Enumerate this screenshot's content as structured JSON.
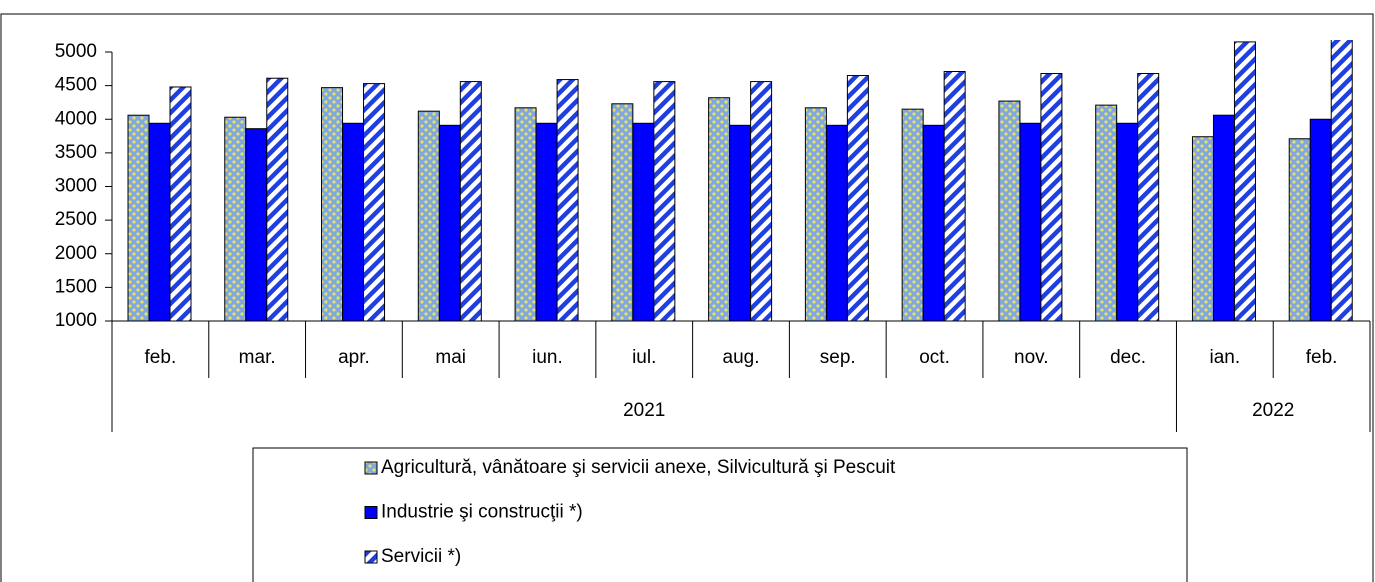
{
  "chart_data": {
    "type": "bar",
    "categories": [
      "feb.",
      "mar.",
      "apr.",
      "mai",
      "iun.",
      "iul.",
      "aug.",
      "sep.",
      "oct.",
      "nov.",
      "dec.",
      "ian.",
      "feb."
    ],
    "groups": [
      {
        "label": "2021",
        "count": 11
      },
      {
        "label": "2022",
        "count": 2
      }
    ],
    "series": [
      {
        "name": "Agricultură, vânătoare şi servicii anexe, Silvicultură şi Pescuit",
        "color": "#7fa7e0",
        "pattern": "dots",
        "values": [
          4060,
          4030,
          4470,
          4120,
          4170,
          4230,
          4320,
          4170,
          4150,
          4270,
          4210,
          3740,
          3710
        ]
      },
      {
        "name": "Industrie şi construcţii *)",
        "color": "#0000ff",
        "pattern": "solid",
        "values": [
          3940,
          3860,
          3940,
          3910,
          3940,
          3940,
          3910,
          3910,
          3910,
          3940,
          3940,
          4060,
          4000
        ]
      },
      {
        "name": "Servicii *)",
        "color": "#1f3fe0",
        "pattern": "stripes",
        "values": [
          4480,
          4610,
          4530,
          4560,
          4590,
          4560,
          4560,
          4650,
          4710,
          4680,
          4680,
          5150,
          5200
        ]
      }
    ],
    "ylim": [
      1000,
      5000
    ],
    "yticks": [
      1000,
      1500,
      2000,
      2500,
      3000,
      3500,
      4000,
      4500,
      5000
    ],
    "grid": false
  }
}
